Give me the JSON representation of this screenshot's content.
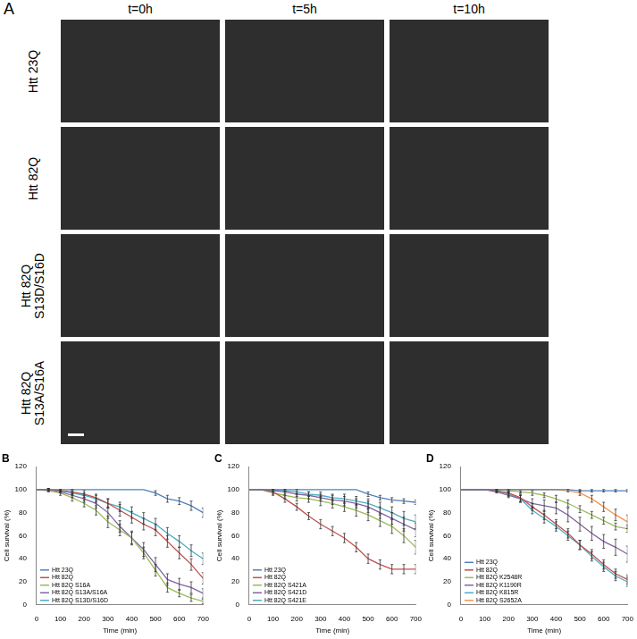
{
  "panel_a": {
    "label": "A",
    "columns": [
      "t=0h",
      "t=5h",
      "t=10h"
    ],
    "rows": [
      "Htt 23Q",
      "Htt 82Q",
      "Htt 82Q S13D/S16D",
      "Htt 82Q S13A/S16A"
    ]
  },
  "chart_data": [
    {
      "type": "line",
      "title": "B",
      "x_label": "Time (min)",
      "y_label": "Cell survival (%)",
      "x": [
        0,
        50,
        100,
        150,
        200,
        250,
        300,
        350,
        400,
        450,
        500,
        550,
        600,
        650,
        700
      ],
      "xlim": [
        0,
        700
      ],
      "xticks": [
        0,
        100,
        200,
        300,
        400,
        500,
        600,
        700
      ],
      "ylim": [
        0,
        120
      ],
      "yticks": [
        0,
        20,
        40,
        60,
        80,
        100,
        120
      ],
      "grid": false,
      "legend": "lower left",
      "marker": "none",
      "series": [
        {
          "name": "Htt 23Q",
          "color": "#4f81bd",
          "values": [
            100,
            100,
            100,
            100,
            100,
            100,
            100,
            100,
            100,
            100,
            97,
            92,
            90,
            86,
            80
          ],
          "errors": [
            0,
            0,
            0,
            0,
            0,
            0,
            0,
            0,
            0,
            0,
            2,
            3,
            3,
            4,
            4
          ]
        },
        {
          "name": "Htt 82Q",
          "color": "#c0504d",
          "values": [
            100,
            100,
            99,
            98,
            96,
            93,
            88,
            82,
            76,
            70,
            65,
            55,
            45,
            35,
            23
          ],
          "errors": [
            0,
            1,
            1,
            2,
            3,
            3,
            4,
            5,
            5,
            5,
            5,
            5,
            5,
            5,
            5
          ]
        },
        {
          "name": "Htt 82Q S16A",
          "color": "#9bbb59",
          "values": [
            100,
            99,
            97,
            93,
            88,
            82,
            72,
            65,
            58,
            45,
            30,
            15,
            10,
            6,
            3
          ],
          "errors": [
            0,
            1,
            2,
            3,
            3,
            4,
            5,
            5,
            5,
            5,
            5,
            4,
            3,
            3,
            2
          ]
        },
        {
          "name": "Htt 82Q S13A/S16A",
          "color": "#8064a2",
          "values": [
            100,
            100,
            98,
            95,
            92,
            88,
            80,
            68,
            58,
            48,
            35,
            22,
            18,
            15,
            10
          ],
          "errors": [
            0,
            1,
            1,
            2,
            3,
            4,
            5,
            5,
            6,
            6,
            6,
            5,
            5,
            5,
            4
          ]
        },
        {
          "name": "Htt 82Q S13D/S16D",
          "color": "#4bacc6",
          "values": [
            100,
            100,
            99,
            97,
            95,
            92,
            88,
            85,
            80,
            75,
            70,
            62,
            55,
            47,
            40
          ],
          "errors": [
            0,
            1,
            1,
            2,
            2,
            3,
            4,
            4,
            5,
            5,
            5,
            5,
            5,
            5,
            5
          ]
        }
      ]
    },
    {
      "type": "line",
      "title": "C",
      "x_label": "Time (min)",
      "y_label": "Cell survival (%)",
      "x": [
        0,
        50,
        100,
        150,
        200,
        250,
        300,
        350,
        400,
        450,
        500,
        550,
        600,
        650,
        700
      ],
      "xlim": [
        0,
        700
      ],
      "xticks": [
        0,
        100,
        200,
        300,
        400,
        500,
        600,
        700
      ],
      "ylim": [
        0,
        120
      ],
      "yticks": [
        0,
        20,
        40,
        60,
        80,
        100,
        120
      ],
      "grid": false,
      "legend": "lower left",
      "marker": "none",
      "series": [
        {
          "name": "Htt 23Q",
          "color": "#4f81bd",
          "values": [
            100,
            100,
            100,
            100,
            100,
            100,
            100,
            100,
            100,
            100,
            96,
            93,
            91,
            90,
            89
          ],
          "errors": [
            0,
            0,
            0,
            0,
            0,
            0,
            0,
            0,
            0,
            0,
            2,
            2,
            2,
            2,
            2
          ]
        },
        {
          "name": "Htt 82Q",
          "color": "#c0504d",
          "values": [
            100,
            100,
            98,
            92,
            85,
            77,
            70,
            64,
            58,
            50,
            40,
            35,
            31,
            31,
            31
          ],
          "errors": [
            0,
            0,
            2,
            3,
            3,
            3,
            4,
            4,
            4,
            4,
            4,
            4,
            4,
            4,
            4
          ]
        },
        {
          "name": "Htt 82Q S421A",
          "color": "#9bbb59",
          "values": [
            100,
            100,
            97,
            95,
            93,
            92,
            90,
            88,
            85,
            82,
            78,
            73,
            68,
            60,
            50
          ],
          "errors": [
            0,
            0,
            2,
            3,
            3,
            3,
            4,
            4,
            4,
            5,
            5,
            5,
            6,
            6,
            6
          ]
        },
        {
          "name": "Htt 82Q S421D",
          "color": "#8064a2",
          "values": [
            100,
            100,
            99,
            98,
            96,
            95,
            93,
            91,
            90,
            88,
            85,
            80,
            75,
            70,
            65
          ],
          "errors": [
            0,
            0,
            1,
            2,
            2,
            3,
            3,
            4,
            4,
            4,
            5,
            5,
            5,
            6,
            6
          ]
        },
        {
          "name": "Htt 82Q S421E",
          "color": "#4bacc6",
          "values": [
            100,
            100,
            100,
            99,
            98,
            96,
            95,
            93,
            92,
            90,
            88,
            84,
            80,
            75,
            72
          ],
          "errors": [
            0,
            0,
            0,
            1,
            2,
            2,
            3,
            3,
            4,
            4,
            4,
            5,
            5,
            6,
            6
          ]
        }
      ]
    },
    {
      "type": "line",
      "title": "D",
      "x_label": "Time (min)",
      "y_label": "Cell survival (%)",
      "x": [
        0,
        50,
        100,
        150,
        200,
        250,
        300,
        350,
        400,
        450,
        500,
        550,
        600,
        650,
        700
      ],
      "xlim": [
        0,
        700
      ],
      "xticks": [
        0,
        100,
        200,
        300,
        400,
        500,
        600,
        700
      ],
      "ylim": [
        0,
        120
      ],
      "yticks": [
        0,
        20,
        40,
        60,
        80,
        100,
        120
      ],
      "grid": false,
      "legend": "lower left",
      "marker": "none",
      "series": [
        {
          "name": "Htt 23Q",
          "color": "#4f81bd",
          "values": [
            100,
            100,
            100,
            100,
            100,
            100,
            100,
            100,
            100,
            100,
            99,
            99,
            99,
            99,
            99
          ],
          "errors": [
            0,
            0,
            0,
            0,
            0,
            0,
            0,
            0,
            0,
            0,
            1,
            1,
            1,
            1,
            1
          ]
        },
        {
          "name": "Htt 82Q",
          "color": "#c0504d",
          "values": [
            100,
            100,
            100,
            99,
            97,
            93,
            85,
            78,
            70,
            62,
            52,
            44,
            35,
            27,
            22
          ],
          "errors": [
            0,
            0,
            0,
            1,
            2,
            3,
            3,
            4,
            4,
            4,
            4,
            4,
            4,
            4,
            4
          ]
        },
        {
          "name": "Htt 82Q K2548R",
          "color": "#9bbb59",
          "values": [
            100,
            100,
            100,
            100,
            99,
            98,
            97,
            95,
            92,
            88,
            83,
            78,
            73,
            68,
            66
          ],
          "errors": [
            0,
            0,
            0,
            0,
            1,
            1,
            2,
            2,
            3,
            3,
            3,
            3,
            3,
            3,
            3
          ]
        },
        {
          "name": "Htt 82Q K1190R",
          "color": "#8064a2",
          "values": [
            100,
            100,
            100,
            98,
            95,
            92,
            88,
            86,
            84,
            78,
            70,
            62,
            55,
            50,
            44
          ],
          "errors": [
            0,
            0,
            0,
            1,
            2,
            3,
            4,
            5,
            5,
            6,
            6,
            6,
            6,
            7,
            7
          ]
        },
        {
          "name": "Htt 82Q K815R",
          "color": "#4bacc6",
          "values": [
            100,
            100,
            100,
            99,
            96,
            92,
            82,
            75,
            68,
            60,
            52,
            42,
            33,
            25,
            20
          ],
          "errors": [
            0,
            0,
            0,
            1,
            2,
            3,
            3,
            4,
            4,
            4,
            4,
            4,
            4,
            4,
            4
          ]
        },
        {
          "name": "Htt 82Q S2652A",
          "color": "#f79646",
          "values": [
            100,
            100,
            100,
            100,
            100,
            100,
            100,
            100,
            100,
            99,
            97,
            92,
            85,
            78,
            72
          ],
          "errors": [
            0,
            0,
            0,
            0,
            0,
            0,
            0,
            0,
            0,
            1,
            2,
            3,
            4,
            5,
            6
          ]
        }
      ]
    }
  ]
}
